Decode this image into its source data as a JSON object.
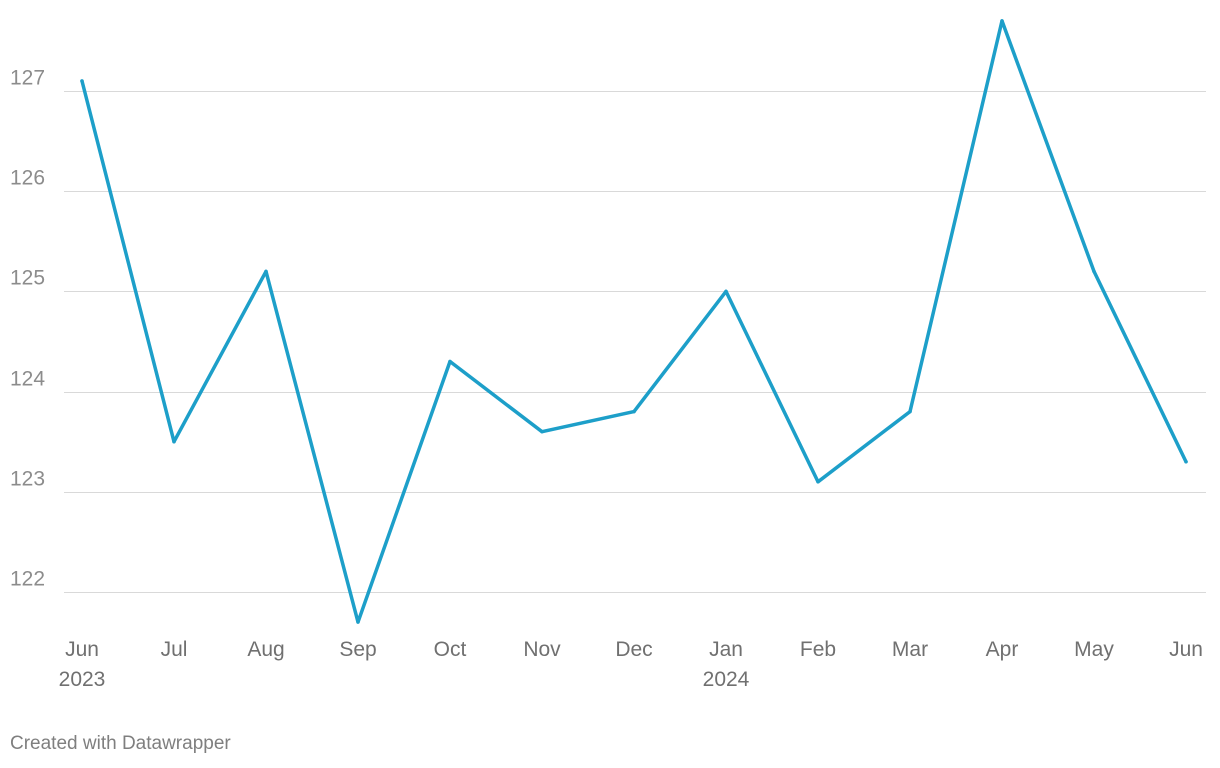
{
  "chart_data": {
    "type": "line",
    "title": "",
    "xlabel": "",
    "ylabel": "",
    "categories": [
      "Jun 2023",
      "Jul 2023",
      "Aug 2023",
      "Sep 2023",
      "Oct 2023",
      "Nov 2023",
      "Dec 2023",
      "Jan 2024",
      "Feb 2024",
      "Mar 2024",
      "Apr 2024",
      "May 2024",
      "Jun 2024"
    ],
    "x_tick_labels": [
      {
        "month": "Jun",
        "year": "2023"
      },
      {
        "month": "Jul",
        "year": ""
      },
      {
        "month": "Aug",
        "year": ""
      },
      {
        "month": "Sep",
        "year": ""
      },
      {
        "month": "Oct",
        "year": ""
      },
      {
        "month": "Nov",
        "year": ""
      },
      {
        "month": "Dec",
        "year": ""
      },
      {
        "month": "Jan",
        "year": "2024"
      },
      {
        "month": "Feb",
        "year": ""
      },
      {
        "month": "Mar",
        "year": ""
      },
      {
        "month": "Apr",
        "year": ""
      },
      {
        "month": "May",
        "year": ""
      },
      {
        "month": "Jun",
        "year": ""
      }
    ],
    "series": [
      {
        "values": [
          127.1,
          123.5,
          125.2,
          121.7,
          124.3,
          123.6,
          123.8,
          125.0,
          123.1,
          123.8,
          127.7,
          125.2,
          123.3
        ],
        "color": "#1d9fc9"
      }
    ],
    "y_ticks": [
      122,
      123,
      124,
      125,
      126,
      127
    ],
    "ylim": [
      121.7,
      127.7
    ],
    "grid": true,
    "legend": "none"
  },
  "footer": {
    "credit": "Created with Datawrapper"
  }
}
